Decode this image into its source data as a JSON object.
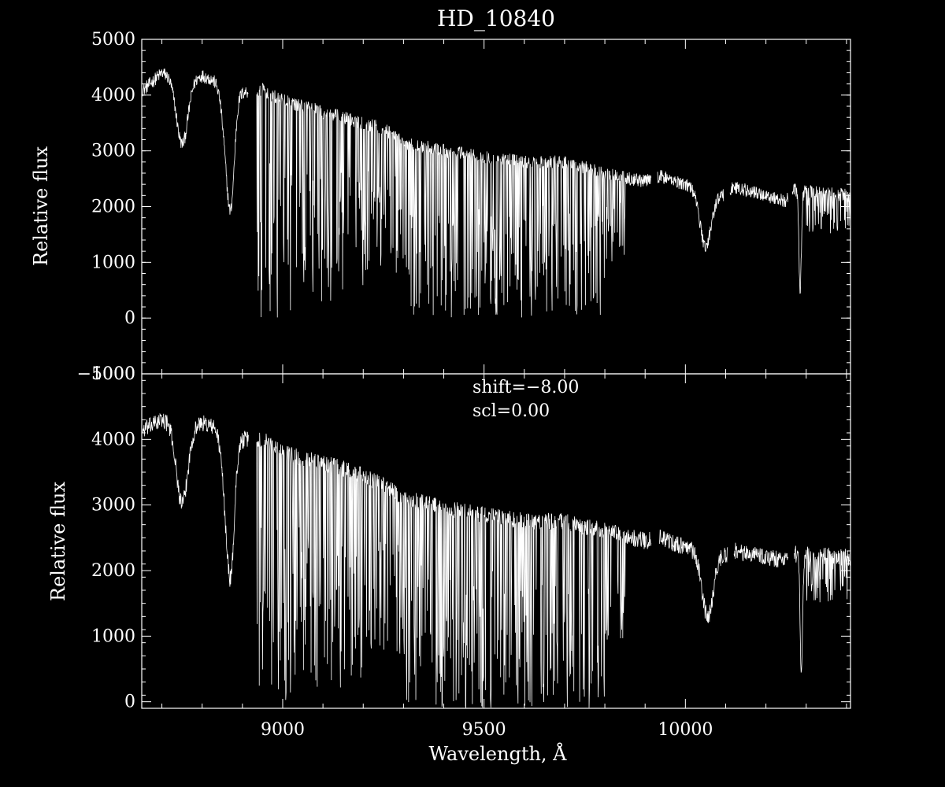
{
  "colors": {
    "background": "#000000",
    "foreground": "#ffffff"
  },
  "chart_data": [
    {
      "type": "line",
      "title": "HD_10840",
      "xlabel": "",
      "ylabel": "Relative flux",
      "xlim": [
        8650,
        10410
      ],
      "ylim": [
        -1000,
        5000
      ],
      "yticks": [
        {
          "value": -1000,
          "label": "−1000"
        },
        {
          "value": 0,
          "label": "0"
        },
        {
          "value": 1000,
          "label": "1000"
        },
        {
          "value": 2000,
          "label": "2000"
        },
        {
          "value": 3000,
          "label": "3000"
        },
        {
          "value": 4000,
          "label": "4000"
        },
        {
          "value": 5000,
          "label": "5000"
        }
      ],
      "xticks_major": [
        9000,
        9500,
        10000
      ],
      "annotations": [],
      "grid": false,
      "series": [
        {
          "gaps": [
            [
              8915,
              8935
            ],
            [
              9915,
              9930
            ],
            [
              10095,
              10110
            ],
            [
              10255,
              10265
            ]
          ],
          "continuum": [
            [
              8655,
              4100
            ],
            [
              8700,
              4400
            ],
            [
              8760,
              4250
            ],
            [
              8800,
              4350
            ],
            [
              8850,
              4200
            ],
            [
              8900,
              4050
            ],
            [
              8950,
              4100
            ],
            [
              9000,
              3900
            ],
            [
              9050,
              3800
            ],
            [
              9100,
              3700
            ],
            [
              9150,
              3600
            ],
            [
              9200,
              3500
            ],
            [
              9250,
              3400
            ],
            [
              9300,
              3150
            ],
            [
              9400,
              3000
            ],
            [
              9500,
              2900
            ],
            [
              9600,
              2800
            ],
            [
              9700,
              2800
            ],
            [
              9800,
              2600
            ],
            [
              9900,
              2450
            ],
            [
              9935,
              2550
            ],
            [
              10000,
              2400
            ],
            [
              10090,
              2200
            ],
            [
              10120,
              2350
            ],
            [
              10250,
              2100
            ],
            [
              10270,
              2300
            ],
            [
              10410,
              2200
            ]
          ],
          "absorption_features": [
            {
              "center": 8750,
              "depth": 1150,
              "width": 14
            },
            {
              "center": 8865,
              "depth": 1500,
              "width": 12
            },
            {
              "center": 8873,
              "depth": 900,
              "width": 8
            },
            {
              "center": 10050,
              "depth": 1000,
              "width": 14
            },
            {
              "center": 10285,
              "depth": 1800,
              "width": 3
            }
          ],
          "telluric_band": [
            {
              "range": [
                8935,
                9020
              ],
              "dip_to": 0
            },
            {
              "range": [
                9020,
                9200
              ],
              "dip_to": 300
            },
            {
              "range": [
                9200,
                9300
              ],
              "dip_to": 800
            },
            {
              "range": [
                9300,
                9800
              ],
              "dip_to": 0
            },
            {
              "range": [
                9800,
                9850
              ],
              "dip_to": 1000
            },
            {
              "range": [
                10300,
                10410
              ],
              "dip_to": 1500
            }
          ],
          "noise": 120
        }
      ]
    },
    {
      "type": "line",
      "title": "",
      "xlabel": "Wavelength, Å",
      "ylabel": "Relative flux",
      "xlim": [
        8650,
        10410
      ],
      "ylim": [
        -100,
        5000
      ],
      "yticks": [
        {
          "value": 0,
          "label": "0"
        },
        {
          "value": 1000,
          "label": "1000"
        },
        {
          "value": 2000,
          "label": "2000"
        },
        {
          "value": 3000,
          "label": "3000"
        },
        {
          "value": 4000,
          "label": "4000"
        },
        {
          "value": 5000,
          "label": "5000"
        }
      ],
      "xticks_major": [
        9000,
        9500,
        10000
      ],
      "xtick_labels": [
        "9000",
        "9500",
        "10000"
      ],
      "annotations": [
        "shift=−8.00",
        "scl=0.00"
      ],
      "grid": false,
      "series": [
        {
          "gaps": [
            [
              8915,
              8935
            ],
            [
              9915,
              9935
            ],
            [
              10105,
              10120
            ],
            [
              10255,
              10270
            ]
          ],
          "continuum": [
            [
              8655,
              4150
            ],
            [
              8700,
              4300
            ],
            [
              8760,
              4200
            ],
            [
              8800,
              4250
            ],
            [
              8850,
              4150
            ],
            [
              8900,
              4000
            ],
            [
              8950,
              4000
            ],
            [
              9000,
              3800
            ],
            [
              9050,
              3700
            ],
            [
              9100,
              3650
            ],
            [
              9150,
              3550
            ],
            [
              9200,
              3450
            ],
            [
              9250,
              3300
            ],
            [
              9300,
              3100
            ],
            [
              9400,
              2950
            ],
            [
              9500,
              2850
            ],
            [
              9600,
              2750
            ],
            [
              9700,
              2750
            ],
            [
              9800,
              2600
            ],
            [
              9900,
              2450
            ],
            [
              9935,
              2500
            ],
            [
              10000,
              2350
            ],
            [
              10100,
              2250
            ],
            [
              10120,
              2300
            ],
            [
              10250,
              2150
            ],
            [
              10270,
              2250
            ],
            [
              10410,
              2200
            ]
          ],
          "absorption_features": [
            {
              "center": 8750,
              "depth": 1200,
              "width": 14
            },
            {
              "center": 8865,
              "depth": 1500,
              "width": 12
            },
            {
              "center": 8873,
              "depth": 900,
              "width": 8
            },
            {
              "center": 10055,
              "depth": 1000,
              "width": 14
            },
            {
              "center": 10288,
              "depth": 1900,
              "width": 3
            }
          ],
          "telluric_band": [
            {
              "range": [
                8935,
                9020
              ],
              "dip_to": -100
            },
            {
              "range": [
                9020,
                9200
              ],
              "dip_to": 200
            },
            {
              "range": [
                9200,
                9300
              ],
              "dip_to": 700
            },
            {
              "range": [
                9300,
                9800
              ],
              "dip_to": -100
            },
            {
              "range": [
                9800,
                9850
              ],
              "dip_to": 900
            },
            {
              "range": [
                10300,
                10410
              ],
              "dip_to": 1500
            }
          ],
          "noise": 130
        }
      ]
    }
  ]
}
